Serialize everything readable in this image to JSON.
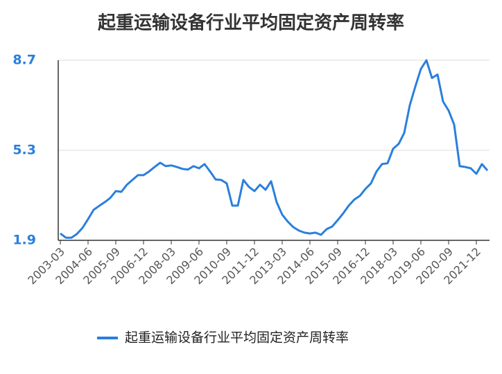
{
  "chart_data": {
    "type": "line",
    "title": "起重运输设备行业平均固定资产周转率",
    "categories": [
      "2003-03",
      null,
      null,
      null,
      null,
      "2004-06",
      null,
      null,
      null,
      null,
      "2005-09",
      null,
      null,
      null,
      null,
      "2006-12",
      null,
      null,
      null,
      null,
      "2008-03",
      null,
      null,
      null,
      null,
      "2009-06",
      null,
      null,
      null,
      null,
      "2010-09",
      null,
      null,
      null,
      null,
      "2011-12",
      null,
      null,
      null,
      null,
      "2013-03",
      null,
      null,
      null,
      null,
      "2014-06",
      null,
      null,
      null,
      null,
      "2015-09",
      null,
      null,
      null,
      null,
      "2016-12",
      null,
      null,
      null,
      null,
      "2018-03",
      null,
      null,
      null,
      null,
      "2019-06",
      null,
      null,
      null,
      null,
      "2020-09",
      null,
      null,
      null,
      null,
      "2021-12",
      null,
      null
    ],
    "series": [
      {
        "name": "起重运输设备行业平均固定资产周转率",
        "color": "#2a7fdc",
        "values": [
          2.16,
          2.0,
          2.0,
          2.14,
          2.37,
          2.7,
          3.05,
          3.2,
          3.34,
          3.5,
          3.76,
          3.73,
          4.0,
          4.18,
          4.36,
          4.36,
          4.5,
          4.67,
          4.83,
          4.7,
          4.73,
          4.67,
          4.6,
          4.57,
          4.7,
          4.62,
          4.78,
          4.5,
          4.2,
          4.18,
          4.05,
          3.21,
          3.21,
          4.18,
          3.92,
          3.76,
          4.0,
          3.81,
          4.13,
          3.34,
          2.87,
          2.61,
          2.4,
          2.27,
          2.19,
          2.16,
          2.19,
          2.11,
          2.32,
          2.42,
          2.66,
          2.92,
          3.21,
          3.44,
          3.58,
          3.84,
          4.05,
          4.5,
          4.78,
          4.81,
          5.36,
          5.54,
          5.96,
          7.0,
          7.71,
          8.37,
          8.7,
          8.03,
          8.16,
          7.14,
          6.8,
          6.27,
          4.7,
          4.67,
          4.62,
          4.41,
          4.78,
          4.54
        ]
      }
    ],
    "ylim": [
      1.9,
      8.7
    ],
    "yticks": [
      1.9,
      5.3,
      8.7
    ],
    "grid": true,
    "legend": "bottom"
  }
}
